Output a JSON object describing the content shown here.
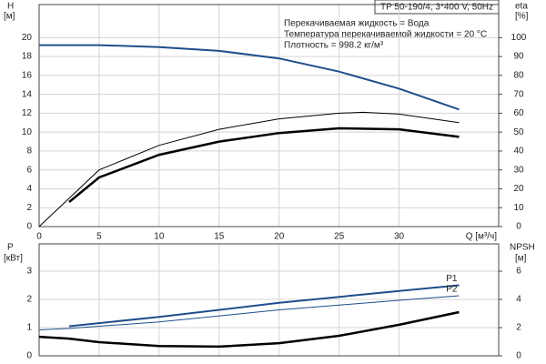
{
  "chart_data": [
    {
      "type": "line",
      "title": "TP 50-190/4, 3*400 V, 50Hz",
      "annotations": [
        "Перекачиваемая жидкость = Вода",
        "Температура перекачиваемой жидкости = 20 °C",
        "Плотность = 998.2 кг/м³"
      ],
      "ylabel": "H",
      "yunit": "[м]",
      "y2label": "eta",
      "y2unit": "[%]",
      "xlabel": "Q [м³/ч]",
      "xlim": [
        0,
        38.3
      ],
      "xticks": [
        0,
        5,
        10,
        15,
        20,
        25,
        30
      ],
      "ylim": [
        0,
        23.5
      ],
      "yticks": [
        0,
        2,
        4,
        6,
        8,
        10,
        12,
        14,
        16,
        18,
        20
      ],
      "y2lim": [
        0,
        117.5
      ],
      "y2ticks": [
        0,
        10,
        20,
        30,
        40,
        50,
        60,
        70,
        80,
        90,
        100
      ],
      "grid": true,
      "series": [
        {
          "color": "#1f4e8c",
          "width": 2,
          "x": [
            0,
            5,
            10,
            15,
            20,
            25,
            30,
            35
          ],
          "values": [
            19.2,
            19.2,
            19.0,
            18.6,
            17.8,
            16.4,
            14.6,
            12.4
          ]
        },
        {
          "color": "#000000",
          "width": 1,
          "axis": "y2",
          "x": [
            0,
            2.5,
            5,
            10,
            15,
            20,
            25,
            27,
            30,
            35
          ],
          "values": [
            0,
            15,
            30,
            43,
            51.5,
            57,
            60,
            60.5,
            59.5,
            55
          ]
        },
        {
          "color": "#000000",
          "width": 2.5,
          "axis": "y2",
          "x": [
            2.5,
            5,
            10,
            15,
            20,
            25,
            30,
            35
          ],
          "values": [
            13,
            26,
            38,
            45,
            49.5,
            52,
            51.5,
            47.5
          ]
        }
      ]
    },
    {
      "type": "line",
      "ylabel": "P",
      "yunit": "[кВт]",
      "y2label": "NPSH",
      "y2unit": "[м]",
      "xlim": [
        0,
        38.3
      ],
      "ylim": [
        0,
        3.97
      ],
      "yticks": [
        0,
        1,
        2,
        3
      ],
      "y2lim": [
        0,
        7.94
      ],
      "y2ticks": [
        0,
        2,
        4,
        6
      ],
      "grid": true,
      "series": [
        {
          "name": "P1",
          "color": "#1f4e8c",
          "width": 2,
          "x": [
            2.5,
            10,
            20,
            30,
            35
          ],
          "values": [
            1.05,
            1.38,
            1.88,
            2.3,
            2.5
          ]
        },
        {
          "name": "P2",
          "color": "#1f4e8c",
          "width": 1,
          "x": [
            0,
            2.5,
            10,
            20,
            30,
            35
          ],
          "values": [
            0.92,
            0.97,
            1.2,
            1.63,
            1.97,
            2.13
          ]
        },
        {
          "color": "#000000",
          "width": 2.5,
          "axis": "y2",
          "x": [
            0,
            2.5,
            5,
            10,
            15,
            20,
            25,
            30,
            35
          ],
          "values": [
            1.35,
            1.22,
            0.97,
            0.7,
            0.65,
            0.9,
            1.42,
            2.2,
            3.1
          ]
        }
      ]
    }
  ]
}
